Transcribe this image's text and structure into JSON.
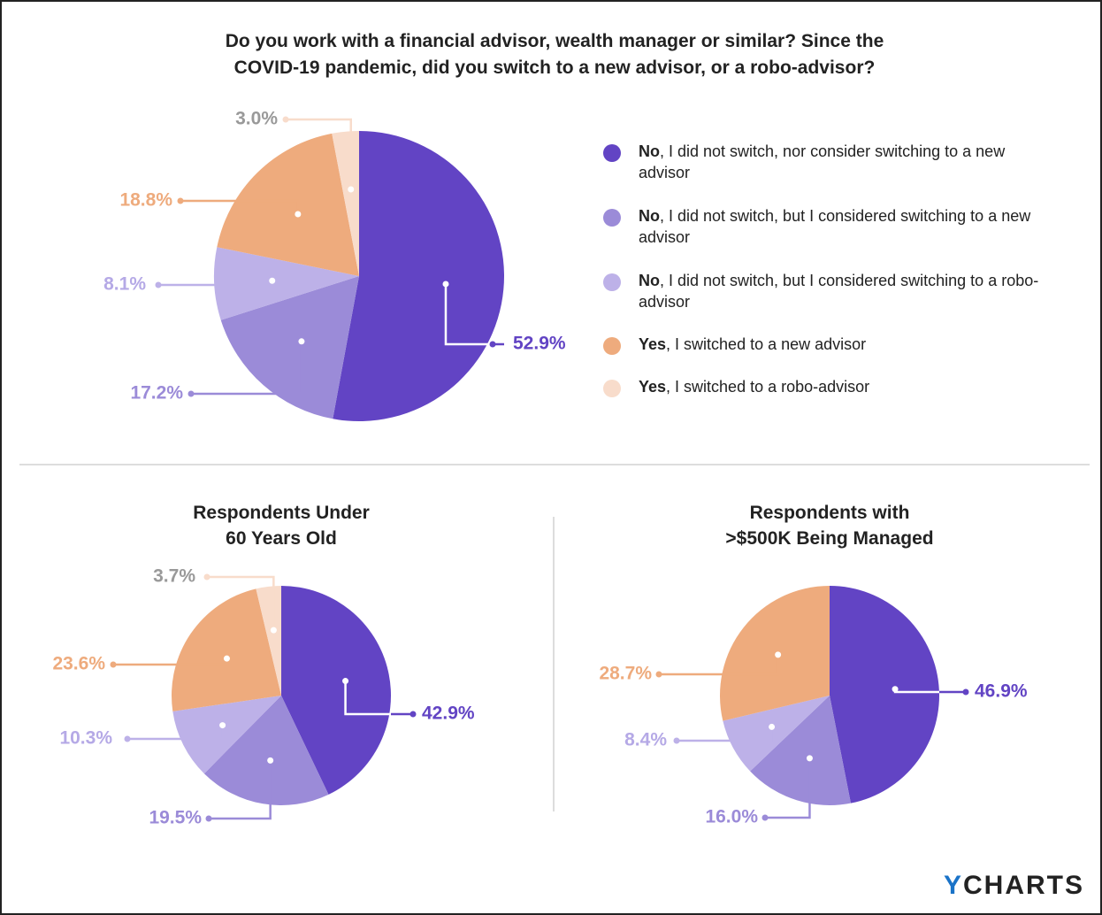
{
  "chart_data": [
    {
      "type": "pie",
      "title": "Do you work with a financial advisor, wealth manager or similar? Since the\nCOVID-19 pandemic, did you switch to a new advisor, or a robo-advisor?",
      "categories": [
        "No, I did not switch, nor consider switching to a new advisor",
        "No, I did not switch, but I considered switching to a new advisor",
        "No, I did not switch, but I considered switching to a robo-advisor",
        "Yes, I switched to a new advisor",
        "Yes, I switched to a robo-advisor"
      ],
      "colors": [
        "#6244c4",
        "#9b8bd8",
        "#bdb1e8",
        "#eeab7d",
        "#f8dccb"
      ],
      "label_colors": [
        "#6244c4",
        "#9b8bd8",
        "#b5a9e6",
        "#eeab7d",
        "#999999"
      ],
      "values": [
        52.9,
        17.2,
        8.1,
        18.8,
        3.0
      ],
      "value_labels": [
        "52.9%",
        "17.2%",
        "8.1%",
        "18.8%",
        "3.0%"
      ]
    },
    {
      "type": "pie",
      "title": "Respondents Under\n60 Years Old",
      "values": [
        42.9,
        19.5,
        10.3,
        23.6,
        3.7
      ],
      "value_labels": [
        "42.9%",
        "19.5%",
        "10.3%",
        "23.6%",
        "3.7%"
      ]
    },
    {
      "type": "pie",
      "title": "Respondents with\n>$500K Being Managed",
      "values": [
        46.9,
        16.0,
        8.4,
        28.7,
        0
      ],
      "value_labels": [
        "46.9%",
        "16.0%",
        "8.4%",
        "28.7%",
        null
      ]
    }
  ],
  "logo": "YCHARTS"
}
